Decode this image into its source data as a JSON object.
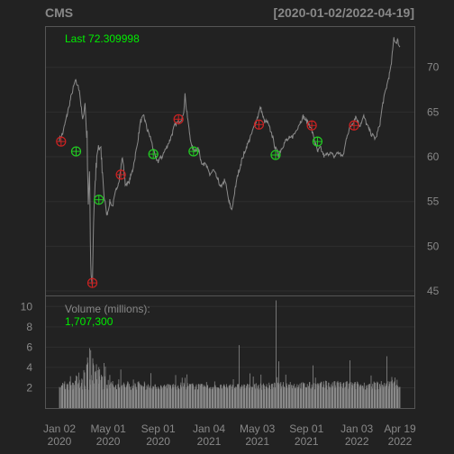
{
  "colors": {
    "background": "#222222",
    "frame": "#555555",
    "grid": "#2e2e2e",
    "text": "#888888",
    "price_line": "#8a8a8a",
    "volume_bar": "#8a8a8a",
    "buy_marker": "#22cc22",
    "sell_marker": "#cc2222",
    "last_label": "#00ee00"
  },
  "chart_data": [
    {
      "type": "line",
      "title": "CMS",
      "subtitle": "[2020-01-02/2022-04-19]",
      "last_label": "Last 72.309998",
      "ylim": [
        44.5,
        74.5
      ],
      "yticks": [
        45,
        50,
        55,
        60,
        65,
        70
      ],
      "grid": true,
      "x_ticks": [
        {
          "date": "2020-01-02",
          "line1": "Jan 02",
          "line2": "2020"
        },
        {
          "date": "2020-05-01",
          "line1": "May 01",
          "line2": "2020"
        },
        {
          "date": "2020-09-01",
          "line1": "Sep 01",
          "line2": "2020"
        },
        {
          "date": "2021-01-04",
          "line1": "Jan 04",
          "line2": "2021"
        },
        {
          "date": "2021-05-03",
          "line1": "May 03",
          "line2": "2021"
        },
        {
          "date": "2021-09-01",
          "line1": "Sep 01",
          "line2": "2021"
        },
        {
          "date": "2022-01-03",
          "line1": "Jan 03",
          "line2": "2022"
        },
        {
          "date": "2022-04-19",
          "line1": "Apr 19",
          "line2": "2022"
        }
      ],
      "x_range": [
        "2020-01-02",
        "2022-04-19"
      ],
      "price_path": [
        [
          "2020-01-02",
          62.0
        ],
        [
          "2020-01-10",
          62.6
        ],
        [
          "2020-01-20",
          64.5
        ],
        [
          "2020-02-01",
          67.0
        ],
        [
          "2020-02-10",
          68.5
        ],
        [
          "2020-02-20",
          67.5
        ],
        [
          "2020-02-28",
          64.0
        ],
        [
          "2020-03-05",
          66.0
        ],
        [
          "2020-03-10",
          62.0
        ],
        [
          "2020-03-13",
          55.0
        ],
        [
          "2020-03-16",
          58.0
        ],
        [
          "2020-03-18",
          50.5
        ],
        [
          "2020-03-20",
          47.0
        ],
        [
          "2020-03-23",
          46.0
        ],
        [
          "2020-03-26",
          53.0
        ],
        [
          "2020-03-31",
          58.0
        ],
        [
          "2020-04-07",
          61.0
        ],
        [
          "2020-04-14",
          60.0
        ],
        [
          "2020-04-21",
          55.5
        ],
        [
          "2020-04-28",
          53.5
        ],
        [
          "2020-05-05",
          55.0
        ],
        [
          "2020-05-12",
          54.5
        ],
        [
          "2020-05-19",
          56.0
        ],
        [
          "2020-05-28",
          57.5
        ],
        [
          "2020-06-05",
          60.0
        ],
        [
          "2020-06-12",
          57.0
        ],
        [
          "2020-06-20",
          57.0
        ],
        [
          "2020-06-30",
          58.5
        ],
        [
          "2020-07-10",
          61.0
        ],
        [
          "2020-07-20",
          64.0
        ],
        [
          "2020-07-28",
          64.5
        ],
        [
          "2020-08-05",
          63.0
        ],
        [
          "2020-08-14",
          62.0
        ],
        [
          "2020-08-24",
          60.0
        ],
        [
          "2020-09-01",
          59.5
        ],
        [
          "2020-09-10",
          60.0
        ],
        [
          "2020-09-21",
          61.0
        ],
        [
          "2020-10-01",
          62.0
        ],
        [
          "2020-10-12",
          63.5
        ],
        [
          "2020-10-22",
          64.0
        ],
        [
          "2020-11-02",
          64.5
        ],
        [
          "2020-11-06",
          67.0
        ],
        [
          "2020-11-09",
          65.5
        ],
        [
          "2020-11-16",
          63.0
        ],
        [
          "2020-11-23",
          61.0
        ],
        [
          "2020-11-30",
          60.8
        ],
        [
          "2020-12-08",
          61.0
        ],
        [
          "2020-12-16",
          59.5
        ],
        [
          "2020-12-28",
          59.0
        ],
        [
          "2021-01-06",
          58.0
        ],
        [
          "2021-01-15",
          58.5
        ],
        [
          "2021-01-25",
          57.5
        ],
        [
          "2021-02-04",
          56.5
        ],
        [
          "2021-02-12",
          57.5
        ],
        [
          "2021-02-22",
          55.0
        ],
        [
          "2021-03-01",
          54.0
        ],
        [
          "2021-03-08",
          56.0
        ],
        [
          "2021-03-16",
          58.0
        ],
        [
          "2021-03-25",
          59.5
        ],
        [
          "2021-04-05",
          61.0
        ],
        [
          "2021-04-15",
          62.0
        ],
        [
          "2021-04-26",
          63.5
        ],
        [
          "2021-05-04",
          64.5
        ],
        [
          "2021-05-11",
          65.5
        ],
        [
          "2021-05-20",
          64.0
        ],
        [
          "2021-05-28",
          63.8
        ],
        [
          "2021-06-08",
          62.5
        ],
        [
          "2021-06-16",
          61.0
        ],
        [
          "2021-06-24",
          60.2
        ],
        [
          "2021-07-02",
          61.0
        ],
        [
          "2021-07-12",
          61.8
        ],
        [
          "2021-07-22",
          62.0
        ],
        [
          "2021-08-02",
          62.5
        ],
        [
          "2021-08-12",
          63.5
        ],
        [
          "2021-08-24",
          64.5
        ],
        [
          "2021-09-01",
          64.0
        ],
        [
          "2021-09-10",
          63.5
        ],
        [
          "2021-09-20",
          62.0
        ],
        [
          "2021-09-28",
          60.5
        ],
        [
          "2021-10-05",
          61.0
        ],
        [
          "2021-10-15",
          60.0
        ],
        [
          "2021-10-28",
          60.5
        ],
        [
          "2021-11-08",
          60.0
        ],
        [
          "2021-11-18",
          60.5
        ],
        [
          "2021-11-30",
          60.0
        ],
        [
          "2021-12-10",
          62.5
        ],
        [
          "2021-12-20",
          63.5
        ],
        [
          "2021-12-31",
          64.5
        ],
        [
          "2022-01-10",
          63.5
        ],
        [
          "2022-01-20",
          64.5
        ],
        [
          "2022-01-28",
          63.5
        ],
        [
          "2022-02-08",
          62.5
        ],
        [
          "2022-02-18",
          62.0
        ],
        [
          "2022-02-28",
          63.5
        ],
        [
          "2022-03-08",
          66.0
        ],
        [
          "2022-03-18",
          68.0
        ],
        [
          "2022-03-28",
          70.0
        ],
        [
          "2022-04-04",
          73.3
        ],
        [
          "2022-04-08",
          72.8
        ],
        [
          "2022-04-13",
          73.0
        ],
        [
          "2022-04-19",
          72.3
        ]
      ],
      "buy_signals": [
        {
          "date": "2020-02-12",
          "value": 60.6
        },
        {
          "date": "2020-04-08",
          "value": 55.2
        },
        {
          "date": "2020-08-20",
          "value": 60.3
        },
        {
          "date": "2020-11-27",
          "value": 60.6
        },
        {
          "date": "2021-06-17",
          "value": 60.2
        },
        {
          "date": "2021-09-28",
          "value": 61.7
        }
      ],
      "sell_signals": [
        {
          "date": "2020-01-06",
          "value": 61.7
        },
        {
          "date": "2020-03-23",
          "value": 45.9
        },
        {
          "date": "2020-06-01",
          "value": 58.0
        },
        {
          "date": "2020-10-21",
          "value": 64.2
        },
        {
          "date": "2021-05-07",
          "value": 63.6
        },
        {
          "date": "2021-09-14",
          "value": 63.5
        },
        {
          "date": "2021-12-27",
          "value": 63.5
        }
      ]
    },
    {
      "type": "bar",
      "label": "Volume (millions):",
      "last_value": "1,707,300",
      "ylim": [
        0,
        11
      ],
      "yticks": [
        2,
        4,
        6,
        8,
        10
      ],
      "baseline": 1.8,
      "volume_shape": [
        [
          "2020-01-02",
          2.3
        ],
        [
          "2020-02-01",
          2.5
        ],
        [
          "2020-03-01",
          3.5
        ],
        [
          "2020-03-15",
          5.2
        ],
        [
          "2020-03-25",
          4.6
        ],
        [
          "2020-04-15",
          3.2
        ],
        [
          "2020-05-15",
          2.4
        ],
        [
          "2020-07-01",
          2.4
        ],
        [
          "2020-09-01",
          2.2
        ],
        [
          "2020-11-01",
          2.4
        ],
        [
          "2021-01-04",
          2.2
        ],
        [
          "2021-05-01",
          2.3
        ],
        [
          "2021-07-01",
          2.4
        ],
        [
          "2021-09-01",
          2.4
        ],
        [
          "2021-12-01",
          2.5
        ],
        [
          "2022-02-01",
          2.4
        ],
        [
          "2022-04-19",
          2.6
        ]
      ],
      "spikes": [
        {
          "date": "2020-03-16",
          "value": 5.9
        },
        {
          "date": "2020-03-19",
          "value": 5.7
        },
        {
          "date": "2020-03-24",
          "value": 4.9
        },
        {
          "date": "2020-06-01",
          "value": 3.8
        },
        {
          "date": "2021-03-19",
          "value": 6.2
        },
        {
          "date": "2021-06-18",
          "value": 10.6
        },
        {
          "date": "2021-06-25",
          "value": 4.6
        },
        {
          "date": "2021-09-17",
          "value": 4.2
        },
        {
          "date": "2021-12-17",
          "value": 4.7
        },
        {
          "date": "2022-03-18",
          "value": 5.1
        }
      ]
    }
  ]
}
